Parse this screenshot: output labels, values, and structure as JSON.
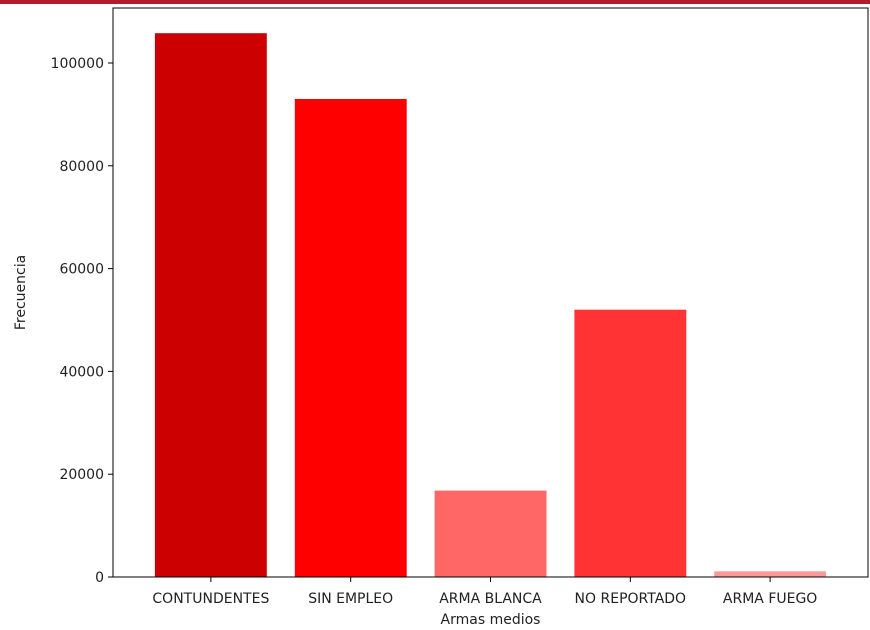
{
  "chart_data": {
    "type": "bar",
    "categories": [
      "CONTUNDENTES",
      "SIN EMPLEO",
      "ARMA BLANCA",
      "NO REPORTADO",
      "ARMA FUEGO"
    ],
    "values": [
      105800,
      93000,
      16800,
      52000,
      1100
    ],
    "colors": [
      "#cc0000",
      "#ff0000",
      "#ff6666",
      "#ff3333",
      "#ff9999"
    ],
    "title": "",
    "xlabel": "Armas medios",
    "ylabel": "Frecuencia",
    "ylim": [
      0,
      110700
    ],
    "yticks": [
      0,
      20000,
      40000,
      60000,
      80000,
      100000
    ],
    "grid": false
  },
  "accent_strip_color": "#b01c2e"
}
